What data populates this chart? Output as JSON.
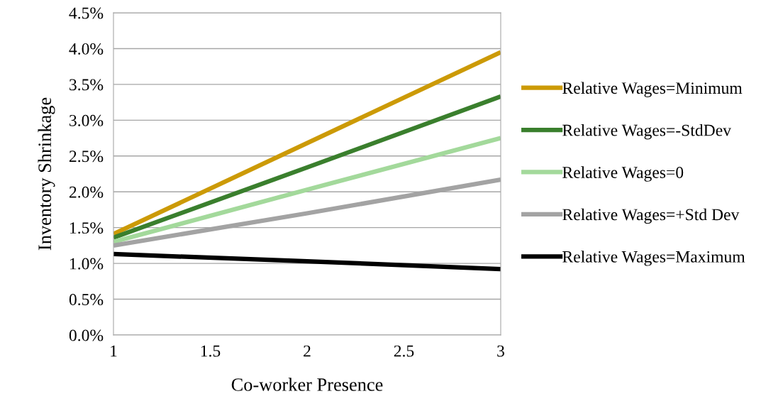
{
  "chart_data": {
    "type": "line",
    "xlabel": "Co-worker Presence",
    "ylabel": "Inventory Shrinkage",
    "x": [
      1,
      2,
      3
    ],
    "series": [
      {
        "name": "Relative Wages=Minimum",
        "color": "#cc9a06",
        "values": [
          1.41,
          2.68,
          3.95
        ]
      },
      {
        "name": "Relative Wages=-StdDev",
        "color": "#3a7f2d",
        "values": [
          1.36,
          2.34,
          3.33
        ]
      },
      {
        "name": "Relative Wages=0",
        "color": "#a3d99b",
        "values": [
          1.3,
          2.03,
          2.75
        ]
      },
      {
        "name": "Relative Wages=+Std Dev",
        "color": "#a3a3a3",
        "values": [
          1.25,
          1.7,
          2.17
        ]
      },
      {
        "name": "Relative Wages=Maximum",
        "color": "#000000",
        "values": [
          1.13,
          1.03,
          0.92
        ]
      }
    ],
    "xlim": [
      1,
      3
    ],
    "xticks": [
      1,
      1.5,
      2,
      2.5,
      3
    ],
    "ylim": [
      0,
      4.5
    ],
    "yticks": [
      {
        "value": 0,
        "label": "0.0%"
      },
      {
        "value": 0.5,
        "label": "0.5%"
      },
      {
        "value": 1,
        "label": "1.0%"
      },
      {
        "value": 1.5,
        "label": "1.5%"
      },
      {
        "value": 2,
        "label": "2.0%"
      },
      {
        "value": 2.5,
        "label": "2.5%"
      },
      {
        "value": 3,
        "label": "3.0%"
      },
      {
        "value": 3.5,
        "label": "3.5%"
      },
      {
        "value": 4,
        "label": "4.0%"
      },
      {
        "value": 4.5,
        "label": "4.5%"
      }
    ],
    "grid": "y",
    "legend": "right",
    "marker": "none",
    "line_style": "solid"
  }
}
